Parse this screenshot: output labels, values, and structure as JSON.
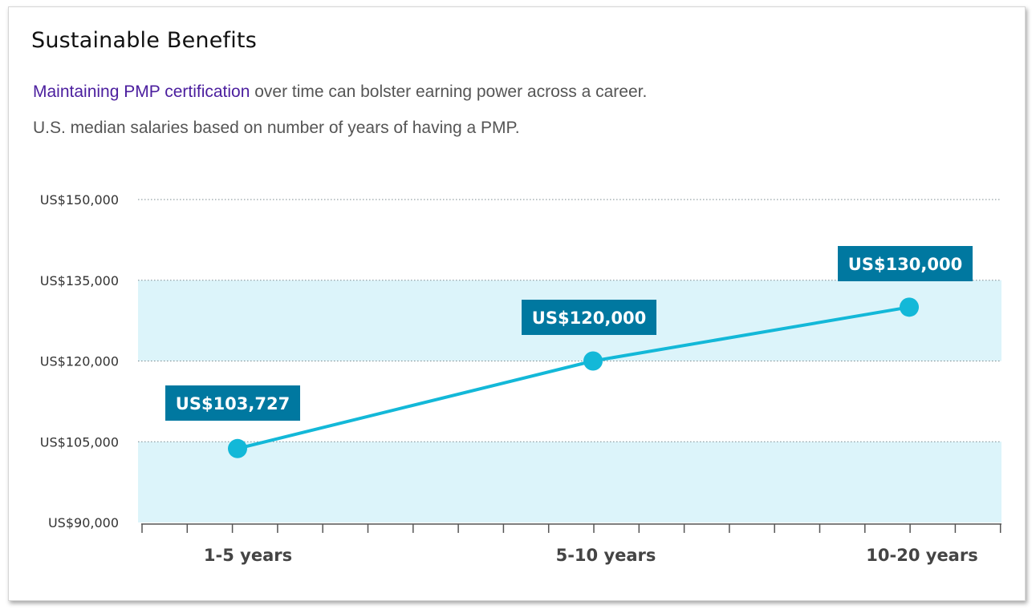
{
  "card": {
    "title": "Sustainable Benefits",
    "subtitle_link": "Maintaining PMP certification",
    "subtitle_rest": " over time can bolster earning power across a career.",
    "note": "U.S. median salaries based on number of years of having a PMP."
  },
  "colors": {
    "band": "#dcf4fa",
    "line": "#13b8d8",
    "label_bg": "#0078a0",
    "gridline": "#7a8a8f",
    "axis": "#555555",
    "link": "#4b1e9e"
  },
  "chart_data": {
    "type": "line",
    "categories": [
      "1-5 years",
      "5-10 years",
      "10-20 years"
    ],
    "values": [
      103727,
      120000,
      130000
    ],
    "data_labels": [
      "US$103,727",
      "US$120,000",
      "US$130,000"
    ],
    "ylim": [
      90000,
      150000
    ],
    "yticks": [
      90000,
      105000,
      120000,
      135000,
      150000
    ],
    "ytick_labels": [
      "US$90,000",
      "US$105,000",
      "US$120,000",
      "US$135,000",
      "US$150,000"
    ],
    "shaded_bands": [
      [
        90000,
        105000
      ],
      [
        120000,
        135000
      ]
    ],
    "grid": true,
    "xlabel": "",
    "ylabel": ""
  }
}
